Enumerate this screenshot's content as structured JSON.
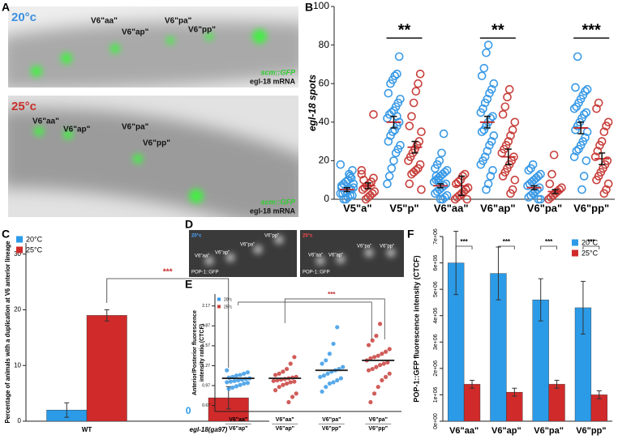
{
  "panel_letters": [
    "A",
    "B",
    "C",
    "D",
    "E",
    "F"
  ],
  "images": [
    {
      "temperature": "20°c",
      "cells": [
        "V6\"aa\"",
        "V6\"ap\"",
        "V6\"pa\"",
        "V6\"pp\""
      ],
      "marker": "scm::GFP",
      "probe": "egl-18 mRNA"
    },
    {
      "temperature": "25°c",
      "cells": [
        "V6\"aa\"",
        "V6\"ap\"",
        "V6\"pa\"",
        "V6\"pp\""
      ],
      "marker": "scm::GFP",
      "probe": "egl-18 mRNA"
    }
  ],
  "images_d": [
    {
      "temperature": "20°c",
      "cells": [
        "V6\"aa\"",
        "V6\"ap\"",
        "V6\"pa\"",
        "V6\"pp\""
      ],
      "marker": "POP-1::GFP"
    },
    {
      "temperature": "25°c",
      "cells": [
        "V6\"aa\"",
        "V6\"ap\"",
        "V6\"pa\"",
        "V6\"pp\""
      ],
      "marker": "POP-1::GFP"
    }
  ],
  "chart_data": [
    {
      "type": "dot",
      "ylabel": "egl-18 spots",
      "categories": [
        "V5\"a\"",
        "V5\"p\"",
        "V6\"aa\"",
        "V6\"ap\"",
        "V6\"pa\"",
        "V6\"pp\""
      ],
      "ylim": [
        0,
        100
      ],
      "yticks": [
        0,
        20,
        40,
        60,
        80,
        100
      ],
      "series": [
        {
          "color": "#3a9ae6",
          "values": [
            [
              18,
              15,
              12,
              10,
              9,
              8,
              7,
              6,
              5,
              5,
              4,
              4,
              3,
              3,
              2,
              2,
              1,
              0,
              0,
              6,
              8,
              11,
              13
            ],
            [
              74,
              65,
              64,
              62,
              60,
              55,
              52,
              50,
              48,
              46,
              45,
              44,
              42,
              40,
              38,
              36,
              35,
              33,
              30,
              28,
              26,
              24,
              20,
              16,
              12,
              8,
              40,
              43
            ],
            [
              34,
              24,
              20,
              18,
              16,
              15,
              14,
              13,
              12,
              11,
              10,
              9,
              8,
              7,
              6,
              5,
              4,
              3,
              2,
              1,
              0,
              0,
              10,
              12
            ],
            [
              80,
              76,
              68,
              64,
              60,
              57,
              55,
              52,
              50,
              47,
              45,
              43,
              42,
              40,
              38,
              36,
              35,
              33,
              30,
              28,
              25,
              22,
              20,
              18,
              15,
              12,
              8,
              5
            ],
            [
              18,
              16,
              15,
              13,
              12,
              11,
              10,
              9,
              8,
              7,
              6,
              5,
              4,
              3,
              2,
              1,
              0,
              0
            ],
            [
              74,
              58,
              57,
              56,
              54,
              52,
              50,
              48,
              47,
              45,
              44,
              42,
              40,
              38,
              36,
              35,
              32,
              30,
              28,
              26,
              25,
              22,
              20,
              12,
              5
            ]
          ],
          "means": [
            5,
            40,
            7,
            40,
            6,
            37
          ],
          "errors": [
            1,
            3,
            1,
            3,
            1,
            3
          ]
        },
        {
          "color": "#c8403c",
          "values": [
            [
              15,
              11,
              9,
              8,
              7,
              6,
              5,
              4,
              3,
              2,
              1,
              0,
              10,
              13,
              44
            ],
            [
              65,
              60,
              56,
              50,
              43,
              38,
              35,
              30,
              28,
              26,
              24,
              22,
              20,
              18,
              16,
              15,
              14,
              13,
              8,
              5
            ],
            [
              13,
              12,
              10,
              9,
              8,
              6,
              5,
              4,
              3,
              2,
              1,
              0,
              0
            ],
            [
              57,
              53,
              48,
              44,
              40,
              36,
              33,
              30,
              28,
              26,
              24,
              22,
              20,
              18,
              16,
              14,
              12,
              10,
              5,
              3
            ],
            [
              23,
              13,
              8,
              6,
              5,
              4,
              3,
              2,
              1,
              0
            ],
            [
              50,
              47,
              40,
              38,
              35,
              30,
              28,
              25,
              22,
              20,
              18,
              16,
              14,
              12,
              10,
              8,
              5,
              3
            ]
          ],
          "means": [
            7,
            27,
            7,
            22,
            4,
            21
          ],
          "errors": [
            1.5,
            3,
            5,
            4,
            1,
            3
          ]
        }
      ],
      "significance": [
        null,
        "**",
        null,
        "**",
        null,
        "***"
      ]
    },
    {
      "type": "bar",
      "ylabel": "Percentage of animals with a duplication at V6 anterior lineage",
      "categories": [
        "WT",
        "egl-18(ga97)"
      ],
      "ylim": [
        0,
        32
      ],
      "yticks": [
        0,
        10,
        20,
        30
      ],
      "legend": "top-left",
      "series": [
        {
          "name": "20°C",
          "color": "#2b9be8",
          "values": [
            2,
            0
          ],
          "errors": [
            1.3,
            0
          ],
          "value_labels": [
            null,
            "0"
          ]
        },
        {
          "name": "25°C",
          "color": "#d02a2a",
          "values": [
            19,
            4.2
          ],
          "errors": [
            1,
            2
          ]
        }
      ],
      "significance": "***"
    },
    {
      "type": "dot",
      "ylabel": [
        "Anterior/Posterior fluorescence",
        "intensity ratio (CTCF)"
      ],
      "categories": [
        [
          "V6\"aa\"",
          "V6\"ap\""
        ],
        [
          "V6\"aa\"",
          "V6\"ap\""
        ],
        [
          "V6\"pa\"",
          "V6\"pp\""
        ],
        [
          "V6\"pa\"",
          "V6\"pp\""
        ]
      ],
      "ylim": [
        0.58,
        2.35
      ],
      "yticks": [
        0.67,
        0.97,
        1.27,
        1.57,
        1.87,
        2.17
      ],
      "legend": "top-left",
      "series": [
        {
          "name": "20°c",
          "color": "#3a9ae6",
          "values": [
            [
              1.2,
              1.17,
              1.15,
              1.13,
              1.12,
              1.1,
              1.09,
              1.08,
              1.07,
              1.06,
              1.05,
              1.04,
              1.03,
              1.02,
              1.01,
              1.0,
              0.98,
              0.96,
              0.94,
              0.92
            ],
            null,
            [
              1.85,
              1.6,
              1.45,
              1.35,
              1.3,
              1.25,
              1.22,
              1.2,
              1.18,
              1.15,
              1.12,
              1.1,
              1.08,
              1.05,
              1.02,
              1.0,
              0.95,
              0.88
            ],
            null
          ],
          "means": [
            1.08,
            null,
            1.2,
            null
          ]
        },
        {
          "name": "25°c",
          "color": "#c8403c",
          "values": [
            null,
            [
              1.4,
              1.3,
              1.22,
              1.18,
              1.15,
              1.13,
              1.1,
              1.09,
              1.08,
              1.07,
              1.06,
              1.05,
              1.04,
              1.03,
              1.02,
              1.0,
              0.98,
              0.95,
              0.9,
              0.85,
              0.8,
              0.72
            ],
            null,
            [
              1.9,
              1.72,
              1.65,
              1.58,
              1.52,
              1.48,
              1.45,
              1.42,
              1.4,
              1.38,
              1.35,
              1.32,
              1.3,
              1.28,
              1.25,
              1.22,
              1.2,
              1.15,
              1.1,
              1.05,
              0.95,
              0.85,
              0.72
            ]
          ],
          "means": [
            null,
            1.08,
            null,
            1.35
          ]
        }
      ],
      "significance": "***"
    },
    {
      "type": "bar",
      "ylabel": "POP-1::GFP fluorescence intensity (CTCF)",
      "categories": [
        "V6\"aa\"",
        "V6\"ap\"",
        "V6\"pa\"",
        "V6\"pp\""
      ],
      "ylim": [
        0,
        7000000
      ],
      "yticks": [
        {
          "value": 0,
          "label": "0e+00"
        },
        {
          "value": 1000000,
          "label": "1e+06"
        },
        {
          "value": 2000000,
          "label": "2e+06"
        },
        {
          "value": 3000000,
          "label": "3e+06"
        },
        {
          "value": 4000000,
          "label": "4e+06"
        },
        {
          "value": 5000000,
          "label": "5e+06"
        },
        {
          "value": 6000000,
          "label": "6e+06"
        },
        {
          "value": 7000000,
          "label": "7e+06"
        }
      ],
      "legend": "top-right",
      "series": [
        {
          "name": "20°C",
          "color": "#2b9be8",
          "values": [
            6000000,
            5600000,
            4600000,
            4300000
          ],
          "errors": [
            1200000,
            1000000,
            800000,
            1000000
          ]
        },
        {
          "name": "25°C",
          "color": "#d02a2a",
          "values": [
            1400000,
            1100000,
            1400000,
            1000000
          ],
          "errors": [
            150000,
            150000,
            150000,
            150000
          ]
        }
      ],
      "significance": [
        "***",
        "***",
        "***",
        "***"
      ]
    }
  ]
}
